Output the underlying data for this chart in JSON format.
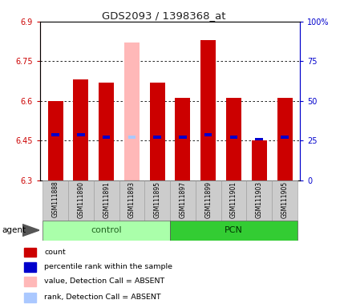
{
  "title": "GDS2093 / 1398368_at",
  "samples": [
    "GSM111888",
    "GSM111890",
    "GSM111891",
    "GSM111893",
    "GSM111895",
    "GSM111897",
    "GSM111899",
    "GSM111901",
    "GSM111903",
    "GSM111905"
  ],
  "bar_bottom": 6.3,
  "bar_tops": [
    6.6,
    6.68,
    6.67,
    6.82,
    6.67,
    6.61,
    6.83,
    6.61,
    6.45,
    6.61
  ],
  "bar_colors": [
    "#cc0000",
    "#cc0000",
    "#cc0000",
    "#ffb8b8",
    "#cc0000",
    "#cc0000",
    "#cc0000",
    "#cc0000",
    "#cc0000",
    "#cc0000"
  ],
  "blue_marker_vals": [
    6.471,
    6.471,
    6.463,
    6.463,
    6.463,
    6.463,
    6.471,
    6.463,
    6.455,
    6.463
  ],
  "blue_marker_colors": [
    "#0000cc",
    "#0000cc",
    "#0000cc",
    "#aac8ff",
    "#0000cc",
    "#0000cc",
    "#0000cc",
    "#0000cc",
    "#0000cc",
    "#0000cc"
  ],
  "group_labels": [
    "control",
    "PCN"
  ],
  "group_ranges": [
    [
      0,
      4
    ],
    [
      5,
      9
    ]
  ],
  "group_light_color": "#aaffaa",
  "group_dark_color": "#33cc33",
  "ylim_left": [
    6.3,
    6.9
  ],
  "ylim_right": [
    0,
    100
  ],
  "yticks_left": [
    6.3,
    6.45,
    6.6,
    6.75,
    6.9
  ],
  "ytick_labels_left": [
    "6.3",
    "6.45",
    "6.6",
    "6.75",
    "6.9"
  ],
  "yticks_right": [
    0,
    25,
    50,
    75,
    100
  ],
  "ytick_labels_right": [
    "0",
    "25",
    "50",
    "75",
    "100%"
  ],
  "hlines": [
    6.45,
    6.6,
    6.75
  ],
  "bar_width": 0.6,
  "left_tick_color": "#cc0000",
  "right_tick_color": "#0000cc",
  "agent_label": "agent",
  "legend_items": [
    {
      "color": "#cc0000",
      "label": "count"
    },
    {
      "color": "#0000cc",
      "label": "percentile rank within the sample"
    },
    {
      "color": "#ffb8b8",
      "label": "value, Detection Call = ABSENT"
    },
    {
      "color": "#aac8ff",
      "label": "rank, Detection Call = ABSENT"
    }
  ]
}
